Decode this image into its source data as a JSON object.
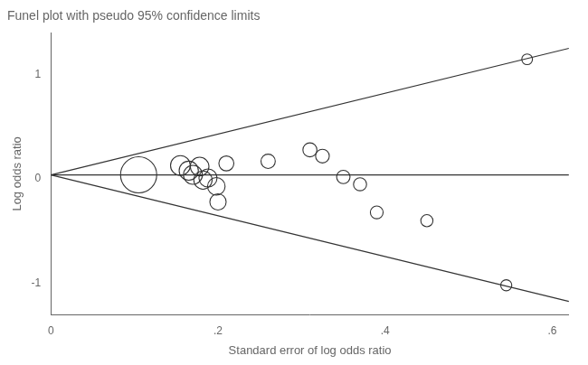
{
  "chart_data": {
    "type": "scatter",
    "title": "Funel plot with pseudo 95% confidence limits",
    "xlabel": "Standard error of log odds ratio",
    "ylabel": "Log odds ratio",
    "xlim": [
      0,
      0.62
    ],
    "ylim": [
      -1.3,
      1.4
    ],
    "xticks": [
      0,
      {
        "value": 0.2,
        "label": ".2"
      },
      {
        "value": 0.4,
        "label": ".4"
      },
      {
        "value": 0.6,
        "label": ".6"
      }
    ],
    "yticks": [
      -1,
      0,
      1
    ],
    "grid": false,
    "series": [
      {
        "type": "line",
        "color": "#333333",
        "x": [
          0,
          0.62
        ],
        "values": [
          0.04,
          1.2552
        ]
      },
      {
        "type": "line",
        "color": "#333333",
        "x": [
          0,
          0.62
        ],
        "values": [
          0.04,
          -1.1752
        ]
      },
      {
        "type": "line",
        "color": "#333333",
        "x": [
          0,
          0.62
        ],
        "values": [
          0.04,
          0.04
        ]
      },
      {
        "type": "scatter",
        "marker": "circle",
        "color": "#333333",
        "x": [
          0.105,
          0.155,
          0.165,
          0.17,
          0.178,
          0.182,
          0.188,
          0.198,
          0.2,
          0.21,
          0.26,
          0.31,
          0.325,
          0.35,
          0.37,
          0.39,
          0.45,
          0.545,
          0.57
        ],
        "values": [
          0.04,
          0.13,
          0.08,
          0.04,
          0.12,
          -0.01,
          0.01,
          -0.07,
          -0.22,
          0.15,
          0.17,
          0.28,
          0.22,
          0.02,
          -0.05,
          -0.32,
          -0.4,
          -1.02,
          1.15
        ],
        "sizes": [
          320,
          95,
          90,
          88,
          85,
          82,
          80,
          75,
          65,
          55,
          50,
          48,
          46,
          44,
          42,
          40,
          36,
          30,
          28
        ]
      }
    ]
  }
}
